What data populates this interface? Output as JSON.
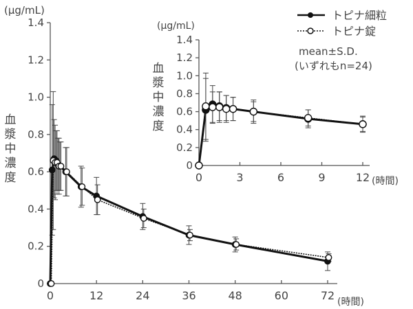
{
  "chart_data": [
    {
      "id": "main",
      "type": "line",
      "title": "",
      "ylabel": "血漿中濃度",
      "yunit": "(μg/mL)",
      "xunit": "(時間)",
      "xlim": [
        0,
        72
      ],
      "ylim": [
        0,
        1.4
      ],
      "xticks": [
        0,
        12,
        24,
        36,
        48,
        60,
        72
      ],
      "yticks": [
        0,
        0.2,
        0.4,
        0.6,
        0.8,
        1.0,
        1.2,
        1.4
      ],
      "ytick_labels": [
        "0",
        "0.2",
        "0.4",
        "0.6",
        "0.8",
        "1.0",
        "1.2",
        "1.4"
      ],
      "grid": false,
      "series": [
        {
          "name": "トピナ細粒",
          "marker": "filled-circle",
          "line": "solid",
          "x": [
            0,
            0.5,
            1,
            1.5,
            2,
            2.5,
            4,
            8,
            12,
            24,
            36,
            48,
            72
          ],
          "y": [
            0,
            0.61,
            0.67,
            0.66,
            0.64,
            0.63,
            0.6,
            0.52,
            0.47,
            0.36,
            0.26,
            0.21,
            0.12
          ],
          "sd": [
            0,
            0.35,
            0.21,
            0.16,
            0.14,
            0.13,
            0.13,
            0.11,
            0.1,
            0.07,
            0.05,
            0.04,
            0.05
          ]
        },
        {
          "name": "トピナ錠",
          "marker": "open-circle",
          "line": "dotted",
          "x": [
            0,
            0.5,
            1,
            1.5,
            2,
            2.5,
            4,
            8,
            12,
            24,
            36,
            48,
            72
          ],
          "y": [
            0,
            0.66,
            0.65,
            0.65,
            0.63,
            0.63,
            0.6,
            0.52,
            0.45,
            0.35,
            0.26,
            0.21,
            0.14
          ],
          "sd": [
            0,
            0.37,
            0.2,
            0.17,
            0.15,
            0.13,
            0.13,
            0.1,
            0.08,
            0.05,
            0.03,
            0.03,
            0.02
          ]
        }
      ]
    },
    {
      "id": "inset",
      "type": "line",
      "title": "",
      "ylabel": "血漿中濃度",
      "yunit": "(μg/mL)",
      "xunit": "(時間)",
      "xlim": [
        0,
        12
      ],
      "ylim": [
        0,
        1.4
      ],
      "xticks": [
        0,
        3,
        6,
        9,
        12
      ],
      "yticks": [
        0,
        0.2,
        0.4,
        0.6,
        0.8,
        1.0,
        1.2,
        1.4
      ],
      "ytick_labels": [
        "0",
        "0.2",
        "0.4",
        "0.6",
        "0.8",
        "1.0",
        "1.2",
        "1.4"
      ],
      "grid": false,
      "series": [
        {
          "name": "トピナ細粒",
          "marker": "filled-circle",
          "line": "solid",
          "x": [
            0,
            0.5,
            1,
            1.5,
            2,
            2.5,
            4,
            8,
            12
          ],
          "y": [
            0,
            0.62,
            0.68,
            0.66,
            0.64,
            0.63,
            0.6,
            0.52,
            0.46
          ],
          "sd": [
            0,
            0.35,
            0.21,
            0.16,
            0.14,
            0.13,
            0.13,
            0.1,
            0.09
          ]
        },
        {
          "name": "トピナ錠",
          "marker": "open-circle",
          "line": "dotted",
          "x": [
            0,
            0.5,
            1,
            1.5,
            2,
            2.5,
            4,
            8,
            12
          ],
          "y": [
            0,
            0.66,
            0.65,
            0.65,
            0.63,
            0.63,
            0.6,
            0.53,
            0.46
          ],
          "sd": [
            0,
            0.37,
            0.17,
            0.17,
            0.15,
            0.13,
            0.11,
            0.09,
            0.08
          ]
        }
      ]
    }
  ],
  "legend": {
    "placement": "top-right",
    "items": [
      {
        "label": "トピナ細粒",
        "marker": "filled-circle",
        "line": "solid"
      },
      {
        "label": "トピナ錠",
        "marker": "open-circle",
        "line": "dotted"
      }
    ],
    "note_line1": "mean±S.D.",
    "note_line2": "(いずれもn=24)"
  }
}
